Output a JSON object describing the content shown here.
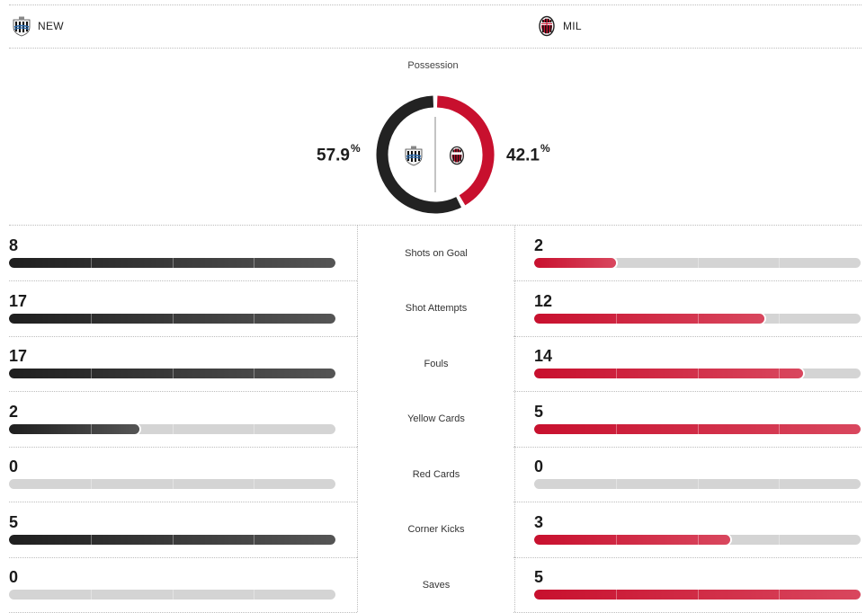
{
  "teams": {
    "home": {
      "abbr": "NEW",
      "crest_icon": "newcastle-crest-icon",
      "color": "#1f1f1f"
    },
    "away": {
      "abbr": "MIL",
      "crest_icon": "ac-milan-crest-icon",
      "color": "#c8102e"
    }
  },
  "possession": {
    "title": "Possession",
    "home_value": "57.9",
    "away_value": "42.1",
    "unit": "%",
    "home_fraction": 0.579,
    "away_fraction": 0.421
  },
  "stats": [
    {
      "label": "Shots on Goal",
      "home": "8",
      "away": "2",
      "home_fraction": 1.0,
      "away_fraction": 0.25
    },
    {
      "label": "Shot Attempts",
      "home": "17",
      "away": "12",
      "home_fraction": 1.0,
      "away_fraction": 0.706
    },
    {
      "label": "Fouls",
      "home": "17",
      "away": "14",
      "home_fraction": 1.0,
      "away_fraction": 0.824
    },
    {
      "label": "Yellow Cards",
      "home": "2",
      "away": "5",
      "home_fraction": 0.4,
      "away_fraction": 1.0
    },
    {
      "label": "Red Cards",
      "home": "0",
      "away": "0",
      "home_fraction": 0,
      "away_fraction": 0
    },
    {
      "label": "Corner Kicks",
      "home": "5",
      "away": "3",
      "home_fraction": 1.0,
      "away_fraction": 0.6
    },
    {
      "label": "Saves",
      "home": "0",
      "away": "5",
      "home_fraction": 0,
      "away_fraction": 1.0
    }
  ]
}
